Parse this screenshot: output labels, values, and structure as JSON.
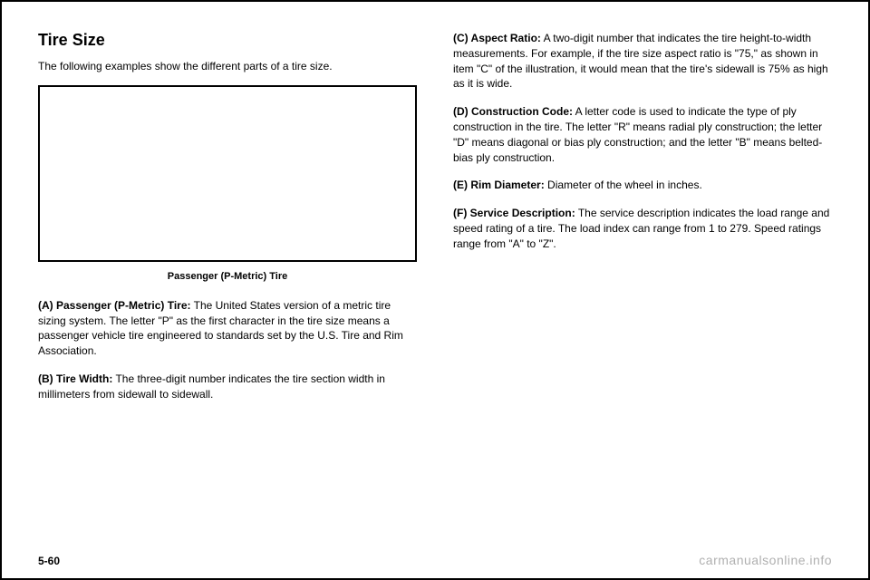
{
  "section_title": "Tire Size",
  "intro": "The following examples show the different parts of a tire size.",
  "diagram_caption": "Passenger (P-Metric) Tire",
  "definitions": {
    "a": {
      "label": "(A) Passenger (P-Metric) Tire:",
      "text": "The United States version of a metric tire sizing system. The letter \"P\" as the first character in the tire size means a passenger vehicle tire engineered to standards set by the U.S. Tire and Rim Association."
    },
    "b": {
      "label": "(B) Tire Width:",
      "text": "The three-digit number indicates the tire section width in millimeters from sidewall to sidewall."
    },
    "c": {
      "label": "(C) Aspect Ratio:",
      "text": "A two-digit number that indicates the tire height-to-width measurements. For example, if the tire size aspect ratio is \"75,\" as shown in item \"C\" of the illustration, it would mean that the tire's sidewall is 75% as high as it is wide."
    },
    "d": {
      "label": "(D) Construction Code:",
      "text": "A letter code is used to indicate the type of ply construction in the tire. The letter \"R\" means radial ply construction; the letter \"D\" means diagonal or bias ply construction; and the letter \"B\" means belted-bias ply construction."
    },
    "e": {
      "label": "(E) Rim Diameter:",
      "text": "Diameter of the wheel in inches."
    },
    "f": {
      "label": "(F) Service Description:",
      "text": "The service description indicates the load range and speed rating of a tire. The load index can range from 1 to 279. Speed ratings range from \"A\" to \"Z\"."
    }
  },
  "page_number": "5-60",
  "watermark": "carmanualsonline.info"
}
